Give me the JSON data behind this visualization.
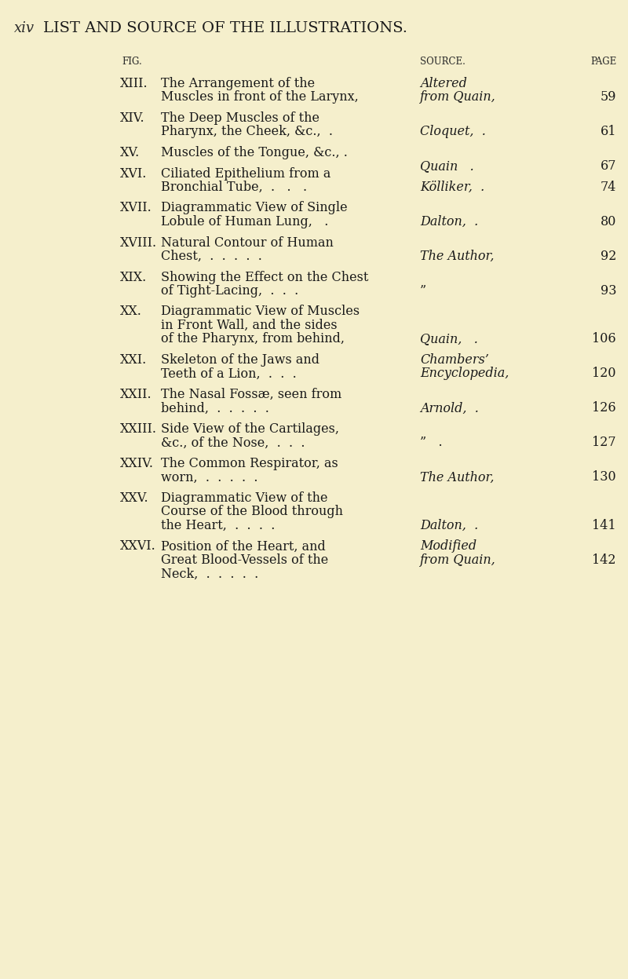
{
  "background_color": "#f5efcc",
  "page_number": "xiv",
  "title": "LIST AND SOURCE OF THE ILLUSTRATIONS.",
  "col_fig": "FIG.",
  "col_source": "SOURCE.",
  "col_page": "PAGE",
  "entries": [
    {
      "fig": "XIII.",
      "line1": "The Arrangement of the",
      "line2": "Muscles in front of the Larynx,",
      "source1": "Altered",
      "source2": "from Quain,",
      "source_italic": true,
      "page": "59"
    },
    {
      "fig": "XIV.",
      "line1": "The Deep Muscles of the",
      "line2": "Pharynx, the Cheek, &c.,    .",
      "source1": "",
      "source2": "Cloquet,    .",
      "source_italic": true,
      "page": "61"
    },
    {
      "fig": "XV.",
      "line1": "Muscles of the Tongue, &c., .",
      "line2": "",
      "source1": "",
      "source2": "Quain      .",
      "source_italic": true,
      "page": "67"
    },
    {
      "fig": "XVI.",
      "line1": "Ciliated Epithelium from a",
      "line2": "Bronchial Tube,   .     .     .",
      "source1": "",
      "source2": "Kölliker,   .",
      "source_italic": true,
      "page": "74"
    },
    {
      "fig": "XVII.",
      "line1": "Diagrammatic View of Single",
      "line2": "Lobule of Human Lung,    .",
      "source1": "",
      "source2": "Dalton,    .",
      "source_italic": true,
      "page": "80"
    },
    {
      "fig": "XVIII.",
      "line1": "Natural Contour of Human",
      "line2": "Chest,  .   .   .   .   .   .",
      "source1": "",
      "source2": "The Author,",
      "source_italic": true,
      "page": "92"
    },
    {
      "fig": "XIX.",
      "line1": "Showing the Effect on the Chest",
      "line2": "of Tight-Lacing,   .   .   .",
      "source1": "",
      "source2": "”",
      "source_italic": false,
      "page": "93"
    },
    {
      "fig": "XX.",
      "line1": "Diagrammatic View of Muscles",
      "line2": "in Front Wall, and the sides",
      "line3": "of the Pharynx, from behind,",
      "source1": "",
      "source2": "Quain,     .",
      "source_italic": true,
      "page": "106"
    },
    {
      "fig": "XXI.",
      "line1": "Skeleton of the Jaws and",
      "line2": "Teeth of a Lion,   .   .   .",
      "source1": "Chambers’",
      "source2": "Encyclopedia,",
      "source_italic": true,
      "page": "120"
    },
    {
      "fig": "XXII.",
      "line1": "The Nasal Fosssæ, seen from",
      "line2": "behind,  .   .   .   .   .  .",
      "source1": "",
      "source2": "Arnold,    .",
      "source_italic": true,
      "page": "126"
    },
    {
      "fig": "XXIII.",
      "line1": "Side View of the Cartilages,",
      "line2": "&c., of the Nose,   .   .   .",
      "source1": "",
      "source2": "”    .",
      "source_italic": false,
      "page": "127"
    },
    {
      "fig": "XXIV.",
      "line1": "The Common Respirator, as",
      "line2": "worn,   .   .   .   .   .  .",
      "source1": "",
      "source2": "The Author,",
      "source_italic": true,
      "page": "130"
    },
    {
      "fig": "XXV.",
      "line1": "Diagrammatic View of the",
      "line2": "Course of the Blood through",
      "line3": "the Heart,   .   .   .   .  .",
      "source1": "",
      "source2": "Dalton,    .",
      "source_italic": true,
      "page": "141"
    },
    {
      "fig": "XXVI.",
      "line1": "Position of the Heart, and",
      "line2": "Great Blood-Vessels of the",
      "line3": "Neck,   .   .   .   .   .  .",
      "source1": "Modified",
      "source2": "from Quain,",
      "source_italic": true,
      "page": "142"
    }
  ]
}
